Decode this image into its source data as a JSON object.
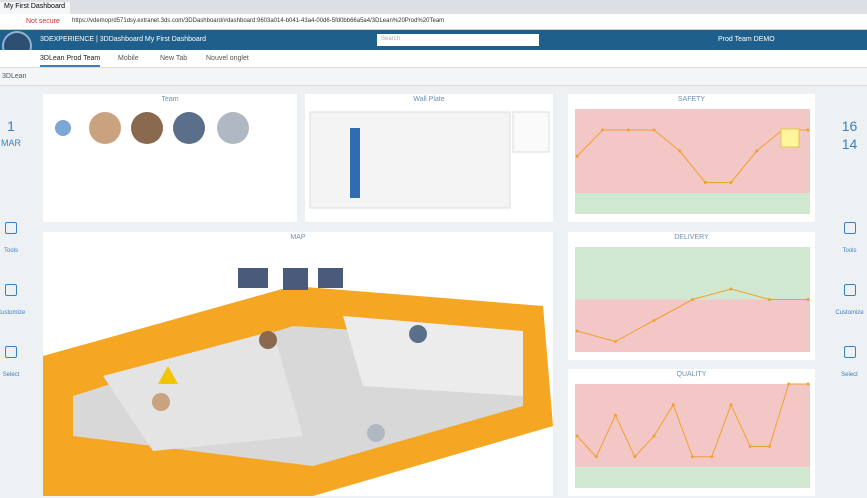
{
  "browser": {
    "tab_title": "My First Dashboard",
    "security": "Not secure",
    "url": "https://vdemoprd571dsy.extranet.3ds.com/3DDashboard/#dashboard:9603a014-b041-43a4-00d6-5fd0bb66a5a4/3DLean%20Prod%20Team"
  },
  "header": {
    "brand": "3DEXPERIENCE | 3DDashboard My First Dashboard",
    "search": "Search",
    "user": "Prod Team DEMO"
  },
  "tabs": [
    "3DLean Prod Team",
    "Mobile",
    "New Tab",
    "Nouvel onglet"
  ],
  "toolbar": {
    "title": "3DLean"
  },
  "left": {
    "day": "1",
    "month": "MAR",
    "tools": [
      "Tools",
      "Customize",
      "Select"
    ]
  },
  "right": {
    "numbers": [
      "16",
      "14"
    ],
    "tools": [
      "Tools",
      "Customize",
      "Select"
    ]
  },
  "widgets": {
    "team": "Team",
    "wall_plate": "Wall Plate",
    "map": "MAP"
  },
  "charts": [
    {
      "type": "line",
      "title": "SAFETY",
      "values": [
        5.5,
        8,
        8,
        8,
        6,
        3,
        3,
        6,
        8,
        8
      ],
      "ylim": [
        0,
        10
      ],
      "threshold": 2,
      "above_color": "#f4c7c7",
      "below_color": "#cfe8cf",
      "color": "#f0a030"
    },
    {
      "type": "line",
      "title": "DELIVERY",
      "values": [
        2,
        1,
        3,
        5,
        6,
        5,
        5
      ],
      "ylim": [
        0,
        10
      ],
      "threshold": 5,
      "above_color": "#cfe8cf",
      "below_color": "#f4c7c7",
      "color": "#f0a030"
    },
    {
      "type": "line",
      "title": "QUALITY",
      "values": [
        5,
        3,
        7,
        3,
        5,
        8,
        3,
        3,
        8,
        4,
        4,
        10,
        10
      ],
      "ylim": [
        0,
        10
      ],
      "threshold": 2,
      "above_color": "#f4c7c7",
      "below_color": "#cfe8cf",
      "color": "#f0a030"
    }
  ]
}
